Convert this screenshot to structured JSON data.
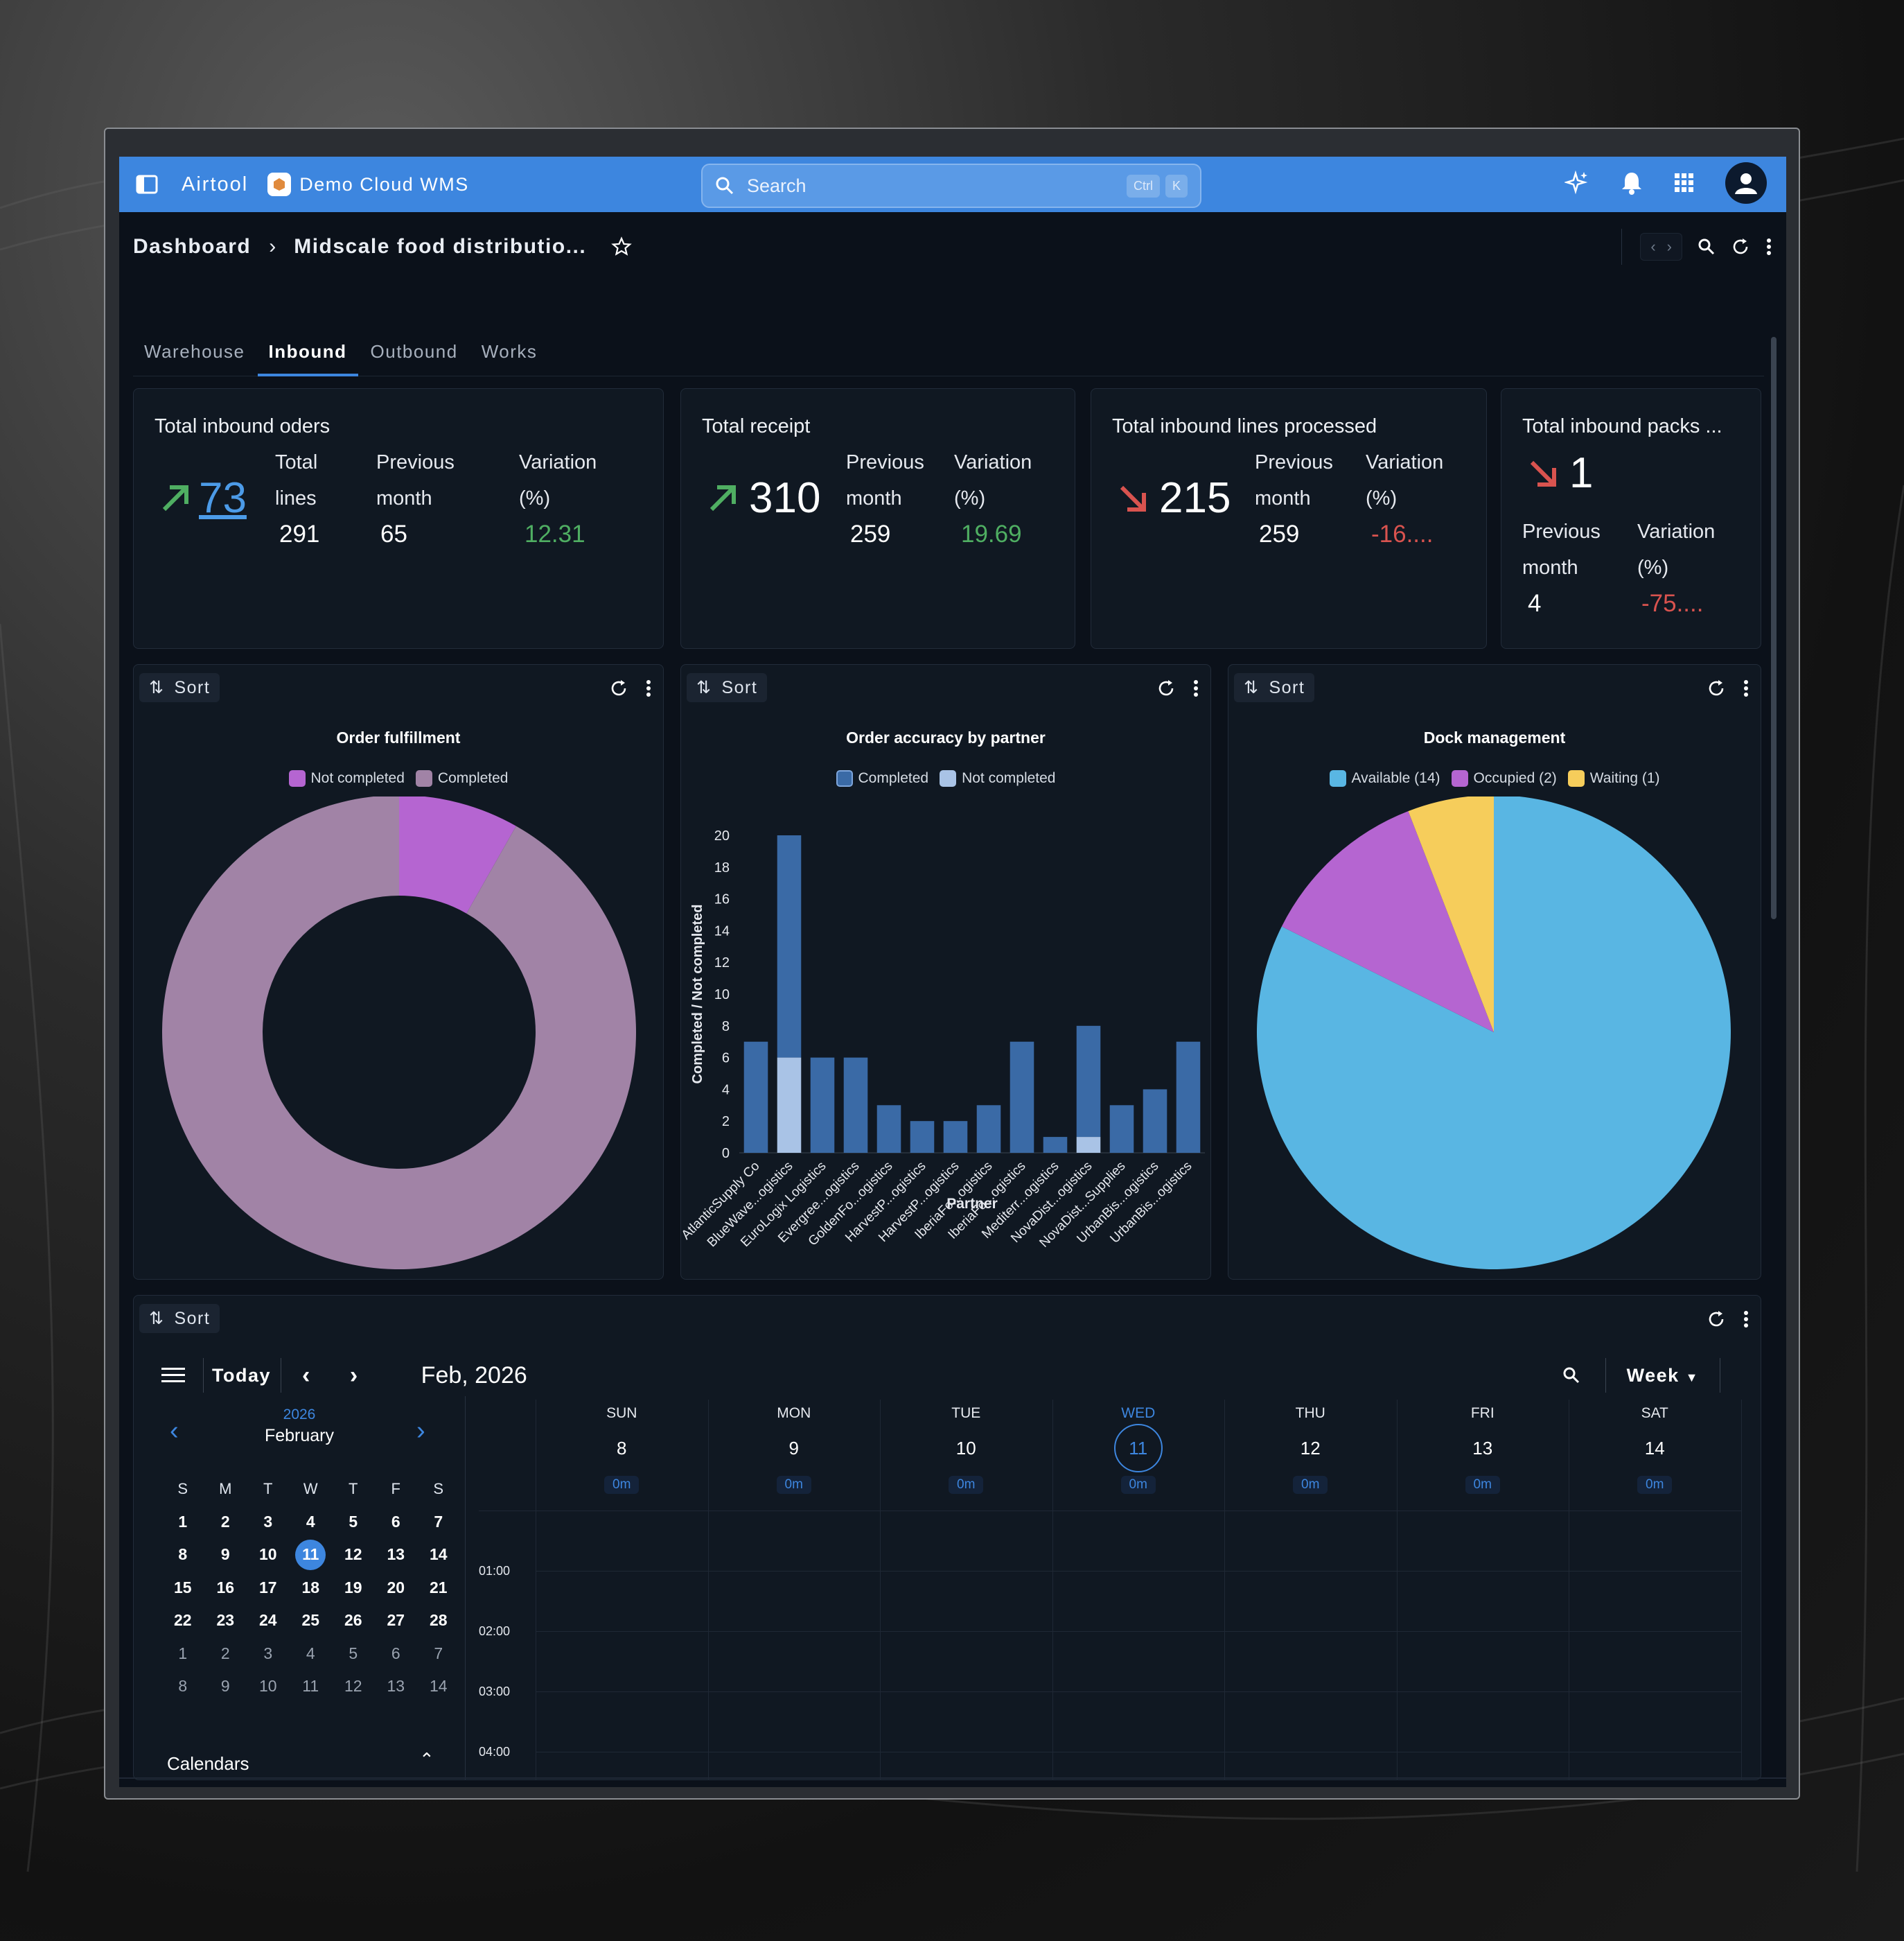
{
  "app": {
    "brand": "Airtool",
    "org": "Demo Cloud WMS",
    "search_placeholder": "Search",
    "kbd_ctrl": "Ctrl",
    "kbd_k": "K"
  },
  "breadcrumb": {
    "root": "Dashboard",
    "current": "Midscale food distributio..."
  },
  "tabs": [
    {
      "label": "Warehouse",
      "active": false
    },
    {
      "label": "Inbound",
      "active": true
    },
    {
      "label": "Outbound",
      "active": false
    },
    {
      "label": "Works",
      "active": false
    }
  ],
  "kpis": {
    "orders": {
      "title": "Total inbound oders",
      "value": "73",
      "trend": "up",
      "lines_label_1": "Total",
      "lines_label_2": "lines",
      "lines_value": "291",
      "prev_label_1": "Previous",
      "prev_label_2": "month",
      "prev_value": "65",
      "var_label_1": "Variation",
      "var_label_2": "(%)",
      "var_value": "12.31"
    },
    "receipt": {
      "title": "Total receipt",
      "value": "310",
      "trend": "up",
      "prev_label_1": "Previous",
      "prev_label_2": "month",
      "prev_value": "259",
      "var_label_1": "Variation",
      "var_label_2": "(%)",
      "var_value": "19.69"
    },
    "lines": {
      "title": "Total inbound lines processed",
      "value": "215",
      "trend": "down",
      "prev_label_1": "Previous",
      "prev_label_2": "month",
      "prev_value": "259",
      "var_label_1": "Variation",
      "var_label_2": "(%)",
      "var_value": "-16...."
    },
    "packs": {
      "title": "Total inbound packs ...",
      "value": "1",
      "trend": "down",
      "prev_label_1": "Previous",
      "prev_label_2": "month",
      "prev_value": "4",
      "var_label_1": "Variation",
      "var_label_2": "(%)",
      "var_value": "-75...."
    }
  },
  "sort_label": "Sort",
  "colors": {
    "accent": "#3d86df",
    "positive": "#4fae62",
    "negative": "#d9534f",
    "not_completed_pink": "#b565d1",
    "completed_mauve": "#a183a6",
    "bar_completed": "#3a6aa6",
    "bar_not_completed": "#a9c3e6",
    "available": "#59b6e3",
    "occupied": "#b565d1",
    "waiting": "#f6cd5b"
  },
  "chart_data": [
    {
      "type": "pie",
      "title": "Order fulfillment",
      "donut": true,
      "labels": [
        "Not completed",
        "Completed"
      ],
      "values": [
        6,
        67
      ],
      "colors": [
        "#b565d1",
        "#a183a6"
      ]
    },
    {
      "type": "bar",
      "stacked": true,
      "title": "Order accuracy by partner",
      "xlabel": "Partner",
      "ylabel": "Completed / Not completed",
      "ylim": [
        0,
        20
      ],
      "yticks": [
        0,
        2,
        4,
        6,
        8,
        10,
        12,
        14,
        16,
        18,
        20
      ],
      "categories": [
        "AtlanticSupply Co",
        "BlueWave...ogistics",
        "EuroLogix Logistics",
        "Evergree...ogistics",
        "GoldenFo...ogistics",
        "HarvestP...ogistics",
        "HarvestP...ogistics",
        "IberiaFo...ogistics",
        "IberiaFo...ogistics",
        "Mediterr...ogistics",
        "NovaDist...ogistics",
        "NovaDist...Supplies",
        "UrbanBis...ogistics",
        "UrbanBis...ogistics"
      ],
      "series": [
        {
          "name": "Completed",
          "values": [
            7,
            14,
            6,
            6,
            3,
            2,
            2,
            3,
            7,
            1,
            7,
            3,
            4,
            7
          ]
        },
        {
          "name": "Not completed",
          "values": [
            0,
            6,
            0,
            0,
            0,
            0,
            0,
            0,
            0,
            0,
            1,
            0,
            0,
            0
          ]
        }
      ]
    },
    {
      "type": "pie",
      "title": "Dock management",
      "labels": [
        "Available (14)",
        "Occupied (2)",
        "Waiting (1)"
      ],
      "values": [
        14,
        2,
        1
      ],
      "colors": [
        "#59b6e3",
        "#b565d1",
        "#f6cd5b"
      ]
    }
  ],
  "calendar": {
    "today_label": "Today",
    "month_label": "Feb, 2026",
    "view_label": "Week",
    "mini_year": "2026",
    "mini_month": "February",
    "weekday_letters": [
      "S",
      "M",
      "T",
      "W",
      "T",
      "F",
      "S"
    ],
    "mini_days": [
      [
        "1",
        "2",
        "3",
        "4",
        "5",
        "6",
        "7"
      ],
      [
        "8",
        "9",
        "10",
        "11",
        "12",
        "13",
        "14"
      ],
      [
        "15",
        "16",
        "17",
        "18",
        "19",
        "20",
        "21"
      ],
      [
        "22",
        "23",
        "24",
        "25",
        "26",
        "27",
        "28"
      ],
      [
        "1",
        "2",
        "3",
        "4",
        "5",
        "6",
        "7"
      ],
      [
        "8",
        "9",
        "10",
        "11",
        "12",
        "13",
        "14"
      ]
    ],
    "selected_day": "11",
    "calendars_label": "Calendars",
    "week_days": [
      {
        "name": "SUN",
        "num": "8",
        "dur": "0m",
        "today": false
      },
      {
        "name": "MON",
        "num": "9",
        "dur": "0m",
        "today": false
      },
      {
        "name": "TUE",
        "num": "10",
        "dur": "0m",
        "today": false
      },
      {
        "name": "WED",
        "num": "11",
        "dur": "0m",
        "today": true
      },
      {
        "name": "THU",
        "num": "12",
        "dur": "0m",
        "today": false
      },
      {
        "name": "FRI",
        "num": "13",
        "dur": "0m",
        "today": false
      },
      {
        "name": "SAT",
        "num": "14",
        "dur": "0m",
        "today": false
      }
    ],
    "time_labels": [
      "01:00",
      "02:00",
      "03:00",
      "04:00"
    ]
  }
}
